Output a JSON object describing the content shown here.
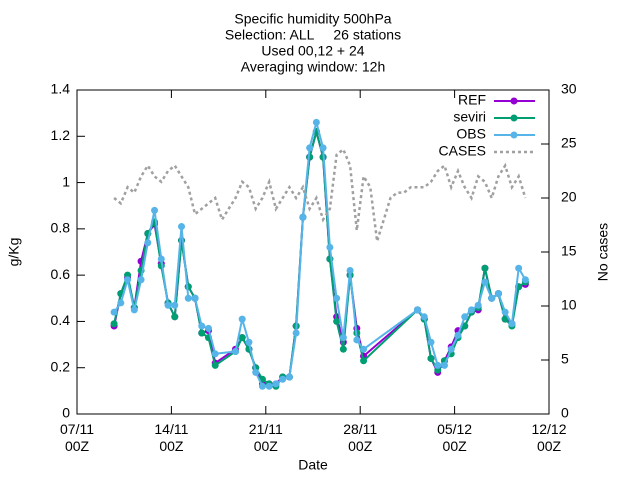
{
  "chart_data": {
    "type": "line",
    "title": [
      "Specific humidity 500hPa",
      "Selection: ALL     26 stations",
      "Used 00,12 + 24",
      "Averaging window: 12h"
    ],
    "xlabel": "Date",
    "ylabel": "g/Kg",
    "y2label": "No cases",
    "xlim": [
      "07/11 00Z",
      "12/12 00Z"
    ],
    "xticks": [
      "07/11 00Z",
      "14/11 00Z",
      "21/11 00Z",
      "28/11 00Z",
      "05/12 00Z",
      "12/12 00Z"
    ],
    "ylim": [
      0,
      1.4
    ],
    "yticks": [
      0,
      0.2,
      0.4,
      0.6,
      0.8,
      1,
      1.2,
      1.4
    ],
    "y2lim": [
      0,
      30
    ],
    "y2ticks": [
      0,
      5,
      10,
      15,
      20,
      25,
      30
    ],
    "legend": "top-right",
    "x": [
      "09/11 18Z",
      "10/11 06Z",
      "10/11 18Z",
      "11/11 06Z",
      "11/11 18Z",
      "12/11 06Z",
      "12/11 18Z",
      "13/11 06Z",
      "13/11 18Z",
      "14/11 06Z",
      "14/11 18Z",
      "15/11 06Z",
      "15/11 18Z",
      "16/11 06Z",
      "16/11 18Z",
      "17/11 06Z",
      "18/11 18Z",
      "19/11 06Z",
      "19/11 18Z",
      "20/11 06Z",
      "20/11 18Z",
      "21/11 06Z",
      "21/11 18Z",
      "22/11 06Z",
      "22/11 18Z",
      "23/11 06Z",
      "23/11 18Z",
      "24/11 06Z",
      "24/11 18Z",
      "25/11 06Z",
      "25/11 18Z",
      "26/11 06Z",
      "26/11 18Z",
      "27/11 06Z",
      "27/11 18Z",
      "28/11 06Z",
      "02/12 06Z",
      "02/12 18Z",
      "03/12 06Z",
      "03/12 18Z",
      "04/12 06Z",
      "04/12 18Z",
      "05/12 06Z",
      "05/12 18Z",
      "06/12 06Z",
      "06/12 18Z",
      "07/12 06Z",
      "07/12 18Z",
      "08/12 06Z",
      "08/12 18Z",
      "09/12 06Z",
      "09/12 18Z",
      "10/12 06Z"
    ],
    "series": [
      {
        "name": "REF",
        "color": "#9400d3",
        "marker": true,
        "values": [
          0.38,
          0.52,
          0.59,
          0.46,
          0.66,
          0.78,
          0.82,
          0.65,
          0.48,
          0.42,
          0.75,
          0.55,
          0.5,
          0.35,
          0.36,
          0.22,
          0.28,
          0.33,
          0.28,
          0.2,
          0.13,
          0.13,
          0.13,
          0.16,
          0.16,
          0.38,
          0.85,
          1.11,
          1.22,
          1.11,
          0.67,
          0.42,
          0.31,
          0.6,
          0.37,
          0.25,
          0.45,
          0.41,
          0.24,
          0.18,
          0.23,
          0.29,
          0.36,
          0.38,
          0.44,
          0.45,
          0.63,
          0.5,
          0.52,
          0.41,
          0.39,
          0.55,
          0.56
        ]
      },
      {
        "name": "seviri",
        "color": "#009e73",
        "marker": true,
        "values": [
          0.39,
          0.52,
          0.6,
          0.46,
          0.62,
          0.78,
          0.83,
          0.64,
          0.48,
          0.42,
          0.75,
          0.55,
          0.5,
          0.35,
          0.33,
          0.21,
          0.27,
          0.33,
          0.28,
          0.2,
          0.15,
          0.13,
          0.12,
          0.16,
          0.16,
          0.38,
          0.85,
          1.11,
          1.22,
          1.11,
          0.67,
          0.4,
          0.28,
          0.6,
          0.35,
          0.23,
          0.45,
          0.41,
          0.24,
          0.19,
          0.23,
          0.26,
          0.33,
          0.38,
          0.44,
          0.46,
          0.63,
          0.5,
          0.52,
          0.41,
          0.38,
          0.55,
          0.57
        ]
      },
      {
        "name": "OBS",
        "color": "#56b4e9",
        "marker": true,
        "values": [
          0.44,
          0.48,
          0.58,
          0.45,
          0.58,
          0.74,
          0.88,
          0.67,
          0.47,
          0.47,
          0.81,
          0.5,
          0.5,
          0.38,
          0.37,
          0.26,
          0.27,
          0.41,
          0.31,
          0.18,
          0.12,
          0.12,
          0.13,
          0.15,
          0.16,
          0.35,
          0.85,
          1.15,
          1.26,
          1.15,
          0.72,
          0.5,
          0.33,
          0.62,
          0.32,
          0.28,
          0.45,
          0.42,
          0.31,
          0.21,
          0.21,
          0.28,
          0.34,
          0.42,
          0.45,
          0.47,
          0.57,
          0.5,
          0.52,
          0.44,
          0.39,
          0.63,
          0.58
        ]
      },
      {
        "name": "CASES",
        "color": "#a0a0a0",
        "axis": "y2",
        "dashed": true,
        "x": [
          "09/11 18Z",
          "10/11 06Z",
          "10/11 18Z",
          "11/11 06Z",
          "11/11 18Z",
          "12/11 06Z",
          "12/11 18Z",
          "13/11 06Z",
          "13/11 18Z",
          "14/11 06Z",
          "14/11 18Z",
          "15/11 06Z",
          "15/11 18Z",
          "16/11 06Z",
          "16/11 18Z",
          "17/11 06Z",
          "17/11 18Z",
          "18/11 06Z",
          "18/11 18Z",
          "19/11 06Z",
          "19/11 18Z",
          "20/11 06Z",
          "20/11 18Z",
          "21/11 06Z",
          "21/11 18Z",
          "22/11 06Z",
          "22/11 18Z",
          "23/11 06Z",
          "23/11 18Z",
          "24/11 06Z",
          "24/11 18Z",
          "25/11 06Z",
          "25/11 18Z",
          "26/11 06Z",
          "26/11 18Z",
          "27/11 06Z",
          "27/11 18Z",
          "28/11 06Z",
          "28/11 18Z",
          "29/11 06Z",
          "29/11 18Z",
          "30/11 06Z",
          "30/11 18Z",
          "01/12 06Z",
          "01/12 18Z",
          "02/12 06Z",
          "02/12 18Z",
          "03/12 06Z",
          "03/12 18Z",
          "04/12 06Z",
          "04/12 18Z",
          "05/12 06Z",
          "05/12 18Z",
          "06/12 06Z",
          "06/12 18Z",
          "07/12 06Z",
          "07/12 18Z",
          "08/12 06Z",
          "08/12 18Z",
          "09/12 06Z",
          "09/12 18Z",
          "10/12 06Z"
        ],
        "values": [
          20,
          19.5,
          21,
          20.5,
          22,
          23,
          22,
          21.5,
          22.5,
          23,
          22,
          21,
          18.5,
          19,
          19.5,
          20,
          18,
          19,
          20,
          21.5,
          21,
          19,
          20,
          21.5,
          19,
          20,
          21,
          20,
          21,
          19,
          20,
          18,
          19,
          24,
          24.5,
          23,
          17,
          22,
          21,
          16,
          18,
          20,
          20.5,
          20.5,
          21,
          21,
          21,
          21.5,
          22.5,
          23,
          21,
          22.5,
          21,
          20,
          22,
          21.5,
          20,
          22,
          23,
          21,
          22,
          20
        ]
      }
    ]
  }
}
